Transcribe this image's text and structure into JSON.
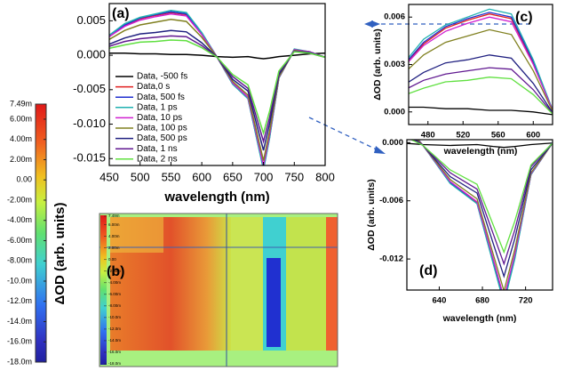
{
  "chart_data": [
    {
      "type": "line",
      "label": "(a)",
      "xlabel": "wavelength (nm)",
      "x": [
        450,
        475,
        500,
        525,
        550,
        575,
        600,
        625,
        650,
        675,
        690,
        700,
        710,
        725,
        750,
        775,
        800
      ],
      "series": [
        {
          "name": "Data, -500 fs",
          "color": "#000000",
          "values": [
            0.0003,
            0.0003,
            0.0002,
            0.0002,
            0.0001,
            0.0001,
            0,
            -0.0002,
            -0.0003,
            -0.0002,
            -0.0004,
            -0.0005,
            -0.0004,
            -0.0002,
            0,
            0.0002,
            0.0003
          ]
        },
        {
          "name": "Data,0 s",
          "color": "#e02020",
          "values": [
            0.0028,
            0.0043,
            0.0053,
            0.0058,
            0.0062,
            0.0059,
            0.0031,
            -0.0003,
            -0.0041,
            -0.0062,
            -0.0122,
            -0.0163,
            -0.0117,
            -0.0033,
            0.0008,
            0.0005,
            -0.0003
          ]
        },
        {
          "name": "Data, 500 fs",
          "color": "#2030d0",
          "values": [
            0.0028,
            0.0044,
            0.0054,
            0.0059,
            0.0063,
            0.006,
            0.0032,
            -0.0003,
            -0.0041,
            -0.0063,
            -0.0124,
            -0.0165,
            -0.0119,
            -0.0033,
            0.0008,
            0.0005,
            -0.0003
          ]
        },
        {
          "name": "Data, 1 ps",
          "color": "#20b0b0",
          "values": [
            0.0029,
            0.0046,
            0.0055,
            0.006,
            0.0065,
            0.0062,
            0.0033,
            -0.0003,
            -0.0042,
            -0.0063,
            -0.0125,
            -0.0166,
            -0.012,
            -0.0033,
            0.0009,
            0.0005,
            -0.0003
          ]
        },
        {
          "name": "Data, 10 ps",
          "color": "#d020d0",
          "values": [
            0.0027,
            0.0042,
            0.0051,
            0.0056,
            0.006,
            0.0057,
            0.003,
            -0.0003,
            -0.004,
            -0.0061,
            -0.012,
            -0.016,
            -0.0115,
            -0.0032,
            0.0008,
            0.0005,
            -0.0003
          ]
        },
        {
          "name": "Data, 100 ps",
          "color": "#808020",
          "values": [
            0.0023,
            0.0036,
            0.0044,
            0.0048,
            0.0052,
            0.0049,
            0.0026,
            -0.0003,
            -0.0038,
            -0.0058,
            -0.0115,
            -0.0153,
            -0.011,
            -0.0031,
            0.0007,
            0.0004,
            -0.0003
          ]
        },
        {
          "name": "Data, 500 ps",
          "color": "#202080",
          "values": [
            0.0016,
            0.0025,
            0.0031,
            0.0033,
            0.0036,
            0.0034,
            0.0018,
            -0.0003,
            -0.0035,
            -0.0052,
            -0.0104,
            -0.0138,
            -0.0099,
            -0.0028,
            0.0006,
            0.0004,
            -0.0003
          ]
        },
        {
          "name": "Data, 1 ns",
          "color": "#601890",
          "values": [
            0.0013,
            0.002,
            0.0024,
            0.0026,
            0.0028,
            0.0027,
            0.0014,
            -0.0003,
            -0.0031,
            -0.0048,
            -0.0094,
            -0.0125,
            -0.009,
            -0.0025,
            0.0006,
            0.0003,
            -0.0003
          ]
        },
        {
          "name": "Data, 2 ns",
          "color": "#60e040",
          "values": [
            0.001,
            0.0015,
            0.0019,
            0.002,
            0.0022,
            0.0021,
            0.0011,
            -0.0003,
            -0.0028,
            -0.0043,
            -0.0085,
            -0.0113,
            -0.0081,
            -0.0023,
            0.0005,
            0.0003,
            -0.0003
          ]
        }
      ],
      "xlim": [
        450,
        800
      ],
      "xticks": [
        450,
        500,
        550,
        600,
        650,
        700,
        750,
        800
      ],
      "ylim": [
        -0.016,
        0.0075
      ],
      "yticks": [
        0.005,
        {
          "value": 0,
          "label": "0.000"
        },
        -0.005,
        {
          "value": -0.01,
          "label": "-0.010"
        },
        -0.015
      ]
    },
    {
      "type": "line",
      "label": "(c)",
      "xlabel": "wavelength (nm)",
      "ylabel": "ΔOD (arb. units)",
      "xlim": [
        458,
        622
      ],
      "xticks": [
        480,
        520,
        560,
        600
      ],
      "ylim": [
        -0.0008,
        0.0068
      ],
      "yticks": [
        {
          "value": 0,
          "label": "0.000"
        },
        0.003,
        0.006
      ]
    },
    {
      "type": "line",
      "label": "(d)",
      "xlabel": "wavelength (nm)",
      "ylabel": "ΔOD (arb. units)",
      "xlim": [
        610,
        745
      ],
      "xticks": [
        640,
        680,
        720
      ],
      "ylim": [
        -0.0152,
        0.0003
      ],
      "yticks": [
        {
          "value": 0,
          "label": "0.000"
        },
        -0.006,
        -0.012
      ]
    },
    {
      "type": "colorbar",
      "label": "(b)",
      "ylabel": "ΔOD (arb. units)",
      "zlim": [
        -0.018,
        0.00749
      ],
      "zticks": [
        {
          "value": 0.00749,
          "label": "7.49m"
        },
        {
          "value": 0.006,
          "label": "6.00m"
        },
        {
          "value": 0.004,
          "label": "4.00m"
        },
        {
          "value": 0.002,
          "label": "2.00m"
        },
        {
          "value": 0,
          "label": "0.00"
        },
        {
          "value": -0.002,
          "label": "-2.00m"
        },
        {
          "value": -0.004,
          "label": "-4.00m"
        },
        {
          "value": -0.006,
          "label": "-6.00m"
        },
        {
          "value": -0.008,
          "label": "-8.00m"
        },
        {
          "value": -0.01,
          "label": "-10.0m"
        },
        {
          "value": -0.012,
          "label": "-12.0m"
        },
        {
          "value": -0.014,
          "label": "-14.0m"
        },
        {
          "value": -0.016,
          "label": "-16.0m"
        },
        {
          "value": -0.018,
          "label": "-18.0m"
        }
      ]
    }
  ]
}
